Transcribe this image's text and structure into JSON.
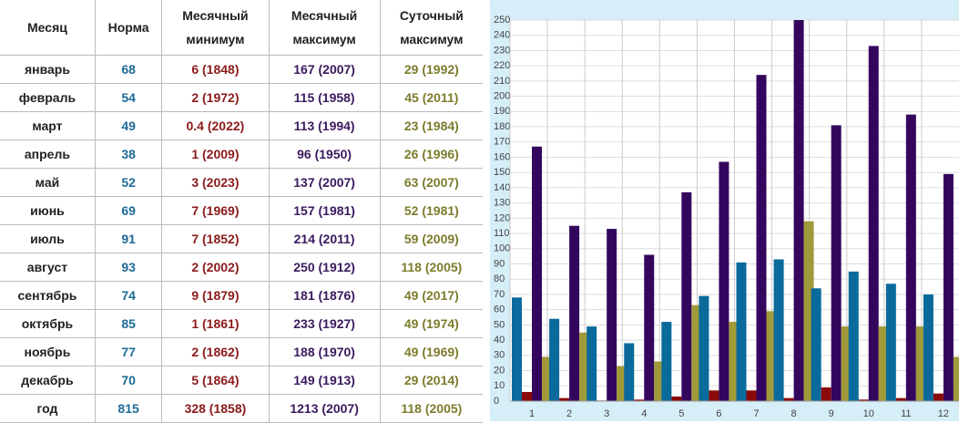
{
  "table": {
    "header": [
      [
        "Месяц"
      ],
      [
        "Норма"
      ],
      [
        "Месячный",
        "минимум"
      ],
      [
        "Месячный",
        "максимум"
      ],
      [
        "Суточный",
        "максимум"
      ]
    ],
    "rows": [
      [
        "январь",
        "68",
        "6 (1848)",
        "167 (2007)",
        "29 (1992)"
      ],
      [
        "февраль",
        "54",
        "2 (1972)",
        "115 (1958)",
        "45 (2011)"
      ],
      [
        "март",
        "49",
        "0.4 (2022)",
        "113 (1994)",
        "23 (1984)"
      ],
      [
        "апрель",
        "38",
        "1 (2009)",
        "96 (1950)",
        "26 (1996)"
      ],
      [
        "май",
        "52",
        "3 (2023)",
        "137 (2007)",
        "63 (2007)"
      ],
      [
        "июнь",
        "69",
        "7 (1969)",
        "157 (1981)",
        "52 (1981)"
      ],
      [
        "июль",
        "91",
        "7 (1852)",
        "214 (2011)",
        "59 (2009)"
      ],
      [
        "август",
        "93",
        "2 (2002)",
        "250 (1912)",
        "118 (2005)"
      ],
      [
        "сентябрь",
        "74",
        "9 (1879)",
        "181 (1876)",
        "49 (2017)"
      ],
      [
        "октябрь",
        "85",
        "1 (1861)",
        "233 (1927)",
        "49 (1974)"
      ],
      [
        "ноябрь",
        "77",
        "2 (1862)",
        "188 (1970)",
        "49 (1969)"
      ],
      [
        "декабрь",
        "70",
        "5 (1864)",
        "149 (1913)",
        "29 (2014)"
      ],
      [
        "год",
        "815",
        "328 (1858)",
        "1213 (2007)",
        "118 (2005)"
      ]
    ]
  },
  "chart_data": {
    "type": "bar",
    "categories": [
      "1",
      "2",
      "3",
      "4",
      "5",
      "6",
      "7",
      "8",
      "9",
      "10",
      "11",
      "12"
    ],
    "series": [
      {
        "color": "#0a6a9c",
        "values": [
          68,
          54,
          49,
          38,
          52,
          69,
          91,
          93,
          74,
          85,
          77,
          70
        ]
      },
      {
        "color": "#8a0a0a",
        "values": [
          6,
          2,
          0.4,
          1,
          3,
          7,
          7,
          2,
          9,
          1,
          2,
          5
        ]
      },
      {
        "color": "#34075e",
        "values": [
          167,
          115,
          113,
          96,
          137,
          157,
          214,
          250,
          181,
          233,
          188,
          149
        ]
      },
      {
        "color": "#a09a3a",
        "values": [
          29,
          45,
          23,
          26,
          63,
          52,
          59,
          118,
          49,
          49,
          49,
          29
        ]
      }
    ],
    "ylim": [
      0,
      250
    ],
    "yticks": [
      0,
      10,
      20,
      30,
      40,
      50,
      60,
      70,
      80,
      90,
      100,
      110,
      120,
      130,
      140,
      150,
      160,
      170,
      180,
      190,
      200,
      210,
      220,
      230,
      240,
      250
    ],
    "grid": true
  }
}
